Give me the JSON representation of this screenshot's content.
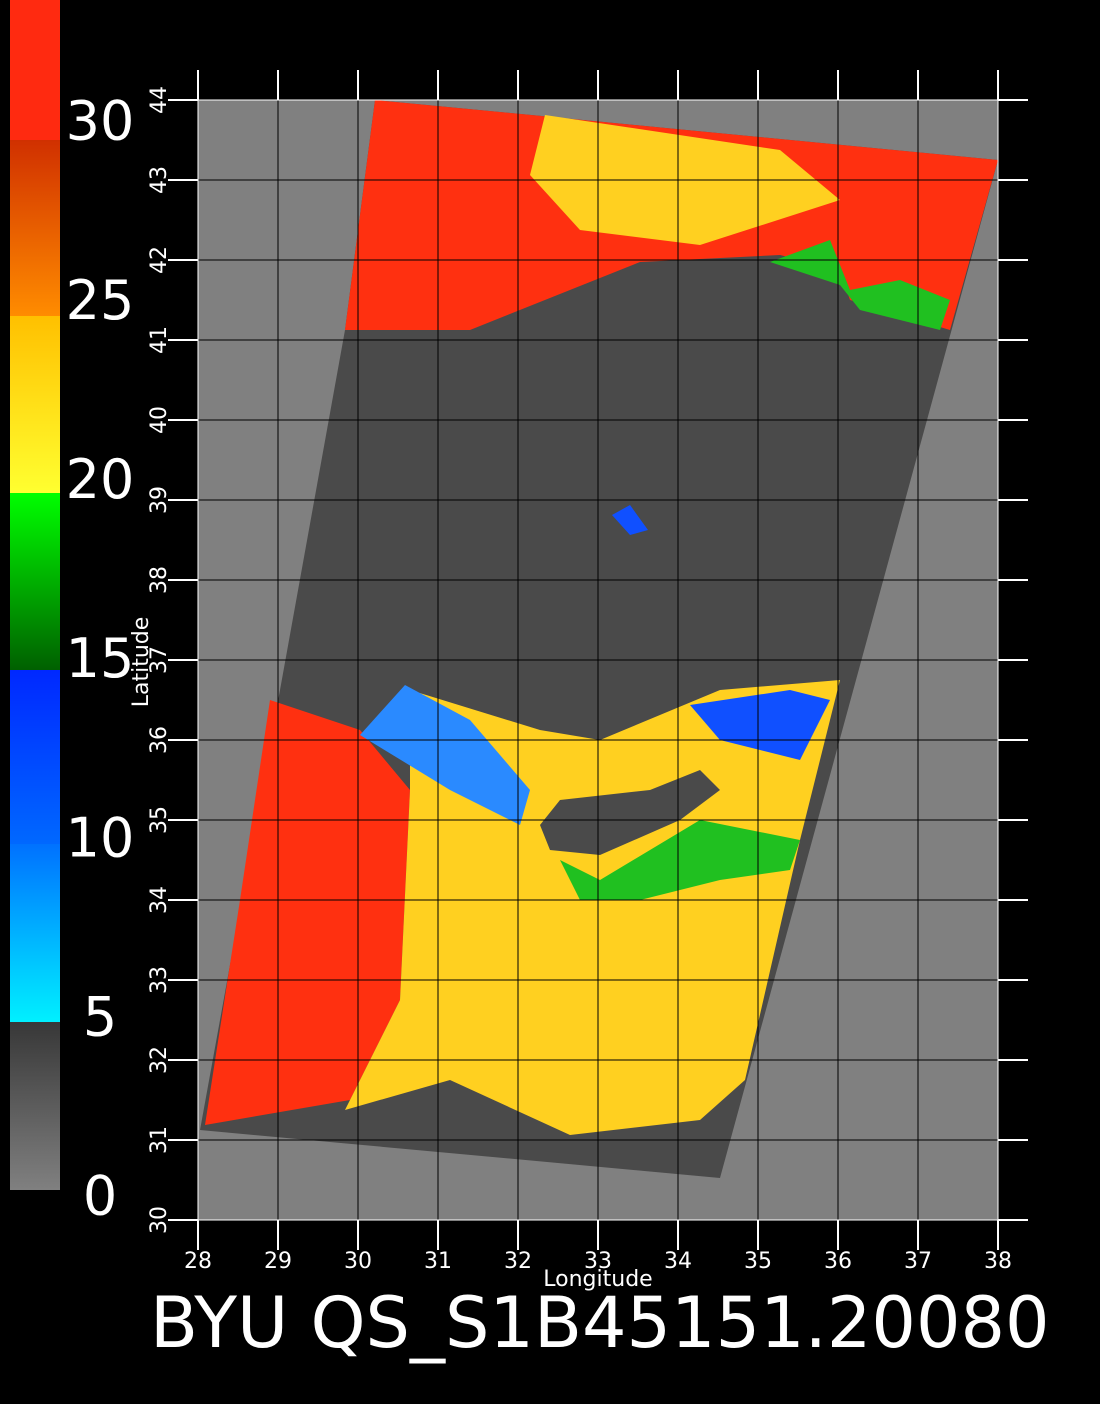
{
  "colorbar": {
    "clim": [
      0,
      30
    ],
    "ticks": [
      0,
      5,
      10,
      15,
      20,
      25,
      30
    ]
  },
  "map": {
    "xlabel": "Longitude",
    "ylabel": "Latitude",
    "xlim": [
      28,
      38
    ],
    "ylim": [
      30,
      44
    ],
    "xticks": [
      28,
      29,
      30,
      31,
      32,
      33,
      34,
      35,
      36,
      37,
      38
    ],
    "yticks": [
      30,
      31,
      32,
      33,
      34,
      35,
      36,
      37,
      38,
      39,
      40,
      41,
      42,
      43,
      44
    ]
  },
  "title": "BYU QS_S1B45151.20080"
}
